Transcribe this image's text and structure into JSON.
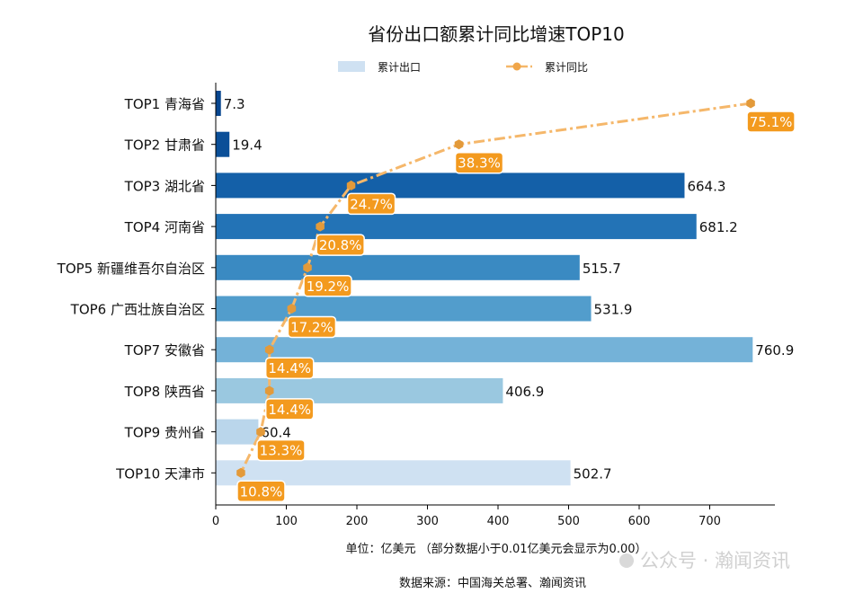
{
  "chart_data": {
    "type": "bar",
    "orientation": "horizontal",
    "title": "省份出口额累计同比增速TOP10",
    "categories": [
      "TOP1 青海省",
      "TOP2 甘肃省",
      "TOP3 湖北省",
      "TOP4 河南省",
      "TOP5 新疆维吾尔自治区",
      "TOP6 广西壮族自治区",
      "TOP7 安徽省",
      "TOP8 陕西省",
      "TOP9 贵州省",
      "TOP10 天津市"
    ],
    "series": [
      {
        "name": "累计出口",
        "type": "bar",
        "values": [
          7.3,
          19.4,
          664.3,
          681.2,
          515.7,
          531.9,
          760.9,
          406.9,
          60.4,
          502.7
        ],
        "labels": [
          "7.3",
          "19.4",
          "664.3",
          "681.2",
          "515.7",
          "531.9",
          "760.9",
          "406.9",
          "60.4",
          "502.7"
        ],
        "colors": [
          "#08468f",
          "#0b4f98",
          "#1460a8",
          "#2373b6",
          "#3a8ac2",
          "#529dcc",
          "#74b2d8",
          "#9ac8e0",
          "#bad6eb",
          "#cfe1f2"
        ]
      },
      {
        "name": "累计同比",
        "type": "line",
        "values": [
          75.1,
          38.3,
          24.7,
          20.8,
          19.2,
          17.2,
          14.4,
          14.4,
          13.3,
          10.8
        ],
        "labels": [
          "75.1%",
          "38.3%",
          "24.7%",
          "20.8%",
          "19.2%",
          "17.2%",
          "14.4%",
          "14.4%",
          "13.3%",
          "10.8%"
        ],
        "color": "#f5b76a"
      }
    ],
    "xticks": [
      "0",
      "100",
      "200",
      "300",
      "400",
      "500",
      "600",
      "700"
    ],
    "xlim": [
      0,
      792
    ],
    "xlabel": "单位：亿美元  （部分数据小于0.01亿美元会显示为0.00）",
    "legend_position": "top-center",
    "grid": false,
    "label_box_color": "#f39a1e"
  },
  "footer": {
    "source": "数据来源：中国海关总署、瀚闻资讯"
  },
  "watermark": "公众号 · 瀚闻资讯"
}
